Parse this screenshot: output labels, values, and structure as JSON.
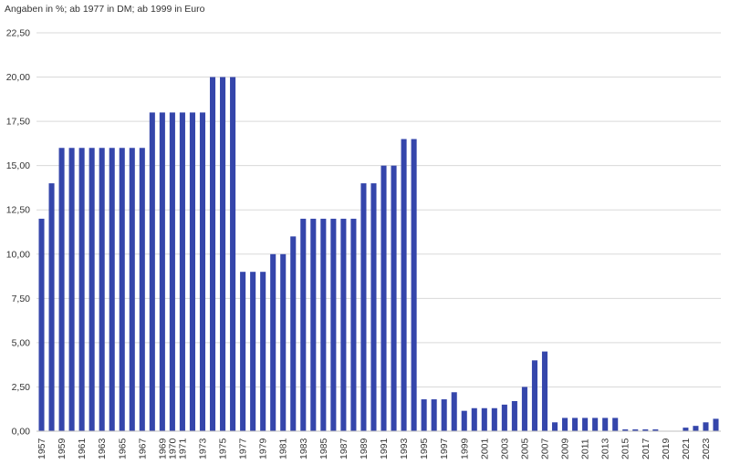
{
  "chart_data": {
    "type": "bar",
    "title": "",
    "unit_note": "Angaben in %; ab 1977 in DM; ab 1999 in Euro",
    "xlabel": "",
    "ylabel": "",
    "ylim": [
      0,
      22.5
    ],
    "y_ticks": [
      "0,00",
      "2,50",
      "5,00",
      "7,50",
      "10,00",
      "12,50",
      "15,00",
      "17,50",
      "20,00",
      "22,50"
    ],
    "y_tick_values": [
      0,
      2.5,
      5,
      7.5,
      10,
      12.5,
      15,
      17.5,
      20,
      22.5
    ],
    "grid": true,
    "legend": "none",
    "colors": {
      "bar": "#3546AB",
      "grid": "#D9D9D9",
      "axis": "#BFBFBF",
      "text": "#333333"
    },
    "categories": [
      "1957",
      "1958",
      "1959",
      "1960",
      "1961",
      "1962",
      "1963",
      "1964",
      "1965",
      "1966",
      "1967",
      "1968",
      "1969",
      "1970",
      "1971",
      "1972",
      "1973",
      "1974",
      "1975",
      "1976",
      "1977",
      "1978",
      "1979",
      "1980",
      "1981",
      "1982",
      "1983",
      "1984",
      "1985",
      "1986",
      "1987",
      "1988",
      "1989",
      "1990",
      "1991",
      "1992",
      "1993",
      "1994",
      "1995",
      "1996",
      "1997",
      "1998",
      "1999",
      "2000",
      "2001",
      "2002",
      "2003",
      "2004",
      "2005",
      "2006",
      "2007",
      "2008",
      "2009",
      "2010",
      "2011",
      "2012",
      "2013",
      "2014",
      "2015",
      "2016",
      "2017",
      "2018",
      "2019",
      "2020",
      "2021",
      "2022",
      "2023",
      "2024"
    ],
    "x_tick_labels": [
      "1957",
      "1959",
      "1961",
      "1963",
      "1965",
      "1967",
      "1969",
      "1970",
      "1971",
      "1973",
      "1975",
      "1977",
      "1979",
      "1981",
      "1983",
      "1985",
      "1987",
      "1989",
      "1991",
      "1993",
      "1995",
      "1997",
      "1999",
      "2001",
      "2003",
      "2005",
      "2007",
      "2009",
      "2011",
      "2013",
      "2015",
      "2017",
      "2019",
      "2021",
      "2023"
    ],
    "values": [
      12,
      14,
      16,
      16,
      16,
      16,
      16,
      16,
      16,
      16,
      16,
      18,
      18,
      18,
      18,
      18,
      18,
      20,
      20,
      20,
      9,
      9,
      9,
      10,
      10,
      11,
      12,
      12,
      12,
      12,
      12,
      12,
      14,
      14,
      15,
      15,
      16.5,
      16.5,
      1.8,
      1.8,
      1.8,
      2.2,
      1.15,
      1.3,
      1.3,
      1.3,
      1.5,
      1.7,
      2.5,
      4.0,
      4.5,
      0.5,
      0.75,
      0.75,
      0.75,
      0.75,
      0.75,
      0.75,
      0.1,
      0.1,
      0.1,
      0.1,
      0,
      0,
      0.2,
      0.3,
      0.5,
      0.7
    ]
  }
}
